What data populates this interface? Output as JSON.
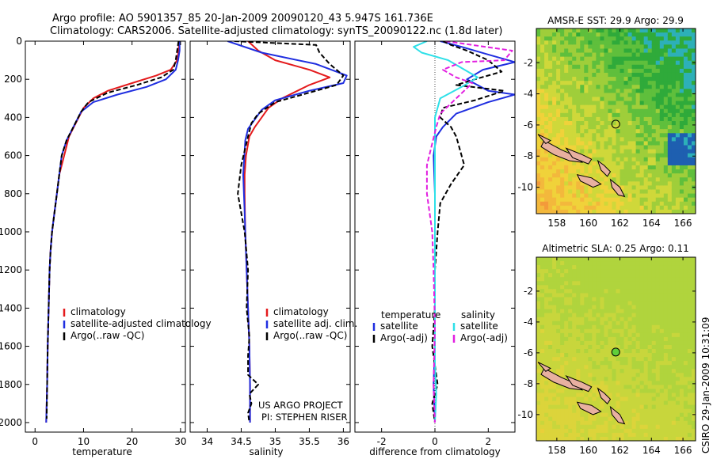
{
  "header": {
    "line1": "Argo profile: AO 5901357_85 20-Jan-2009 20090120_43 5.947S 161.736E",
    "line2": "Climatology: CARS2006. Satellite-adjusted climatology: synTS_20090122.nc (1.8d later)"
  },
  "side_label": "CSIRO 29-Jan-2009 10:31:09",
  "colors": {
    "climatology": "#e41a1c",
    "satellite": "#1f2ee0",
    "argo": "#000000",
    "sal_satellite": "#2ee0e8",
    "sal_argo": "#e21fe0"
  },
  "chart_data": [
    {
      "type": "line",
      "xlabel": "temperature",
      "xlim": [
        -2,
        31
      ],
      "ylim": [
        0,
        2050
      ],
      "xticks": [
        "0",
        "10",
        "20",
        "30"
      ],
      "xtick_values": [
        0,
        10,
        20,
        30
      ],
      "yticks": [
        "0",
        "200",
        "400",
        "600",
        "800",
        "1000",
        "1200",
        "1400",
        "1600",
        "1800",
        "2000"
      ],
      "ytick_values": [
        0,
        200,
        400,
        600,
        800,
        1000,
        1200,
        1400,
        1600,
        1800,
        2000
      ],
      "legend": [
        {
          "label": "climatology",
          "color": "#e41a1c"
        },
        {
          "label": "satellite-adjusted climatology",
          "color": "#1f2ee0"
        },
        {
          "label": "Argo(..raw -QC)",
          "color": "#000000"
        }
      ],
      "series": [
        {
          "name": "climatology",
          "color": "#e41a1c",
          "dash": "",
          "x": [
            29.7,
            29.6,
            29.3,
            28,
            25,
            20,
            15,
            12,
            10,
            9,
            8,
            7,
            6,
            5,
            4.5,
            4,
            3.5,
            3.2,
            3,
            2.8,
            2.6,
            2.5,
            2.4,
            2.3
          ],
          "y": [
            0,
            50,
            100,
            150,
            180,
            220,
            260,
            300,
            350,
            400,
            450,
            500,
            600,
            700,
            800,
            900,
            1000,
            1100,
            1200,
            1400,
            1600,
            1800,
            1900,
            2000
          ]
        },
        {
          "name": "satellite-adjusted climatology",
          "color": "#1f2ee0",
          "dash": "",
          "x": [
            29.8,
            29.8,
            29.5,
            29,
            27,
            23,
            17,
            12,
            9.5,
            8.5,
            7.5,
            6.5,
            5.5,
            5,
            4.5,
            4,
            3.5,
            3.2,
            3,
            2.8,
            2.6,
            2.5,
            2.4,
            2.3
          ],
          "y": [
            0,
            50,
            100,
            150,
            200,
            240,
            280,
            320,
            370,
            420,
            470,
            520,
            600,
            700,
            800,
            900,
            1000,
            1100,
            1200,
            1400,
            1600,
            1800,
            1900,
            2000
          ]
        },
        {
          "name": "Argo(..raw -QC)",
          "color": "#000000",
          "dash": "6,3",
          "x": [
            29.6,
            29.3,
            29,
            28.5,
            26,
            21,
            15,
            11,
            9.5,
            8.5,
            7.5,
            6.5,
            5.5,
            5,
            4.5,
            4,
            3.5,
            3.2,
            3,
            2.8,
            2.6,
            2.5,
            2.4
          ],
          "y": [
            0,
            50,
            100,
            150,
            190,
            230,
            270,
            320,
            370,
            420,
            470,
            520,
            600,
            700,
            800,
            900,
            1000,
            1100,
            1200,
            1400,
            1600,
            1800,
            1980
          ]
        }
      ]
    },
    {
      "type": "line",
      "xlabel": "salinity",
      "xlim": [
        33.75,
        36.1
      ],
      "ylim": [
        0,
        2050
      ],
      "xticks": [
        "34",
        "34.5",
        "35",
        "35.5",
        "36"
      ],
      "xtick_values": [
        34,
        34.5,
        35,
        35.5,
        36
      ],
      "legend": [
        {
          "label": "climatology",
          "color": "#e41a1c"
        },
        {
          "label": "satellite adj. clim.",
          "color": "#1f2ee0"
        },
        {
          "label": "Argo(..raw -QC)",
          "color": "#000000"
        }
      ],
      "annotation": [
        "US ARGO PROJECT",
        "PI: STEPHEN RISER"
      ],
      "series": [
        {
          "name": "climatology",
          "color": "#e41a1c",
          "dash": "",
          "x": [
            34.6,
            34.75,
            35,
            35.5,
            35.8,
            35.5,
            35.1,
            34.9,
            34.8,
            34.7,
            34.62,
            34.57,
            34.55,
            34.55,
            34.56,
            34.58,
            34.6,
            34.62,
            34.63,
            34.63,
            34.63
          ],
          "y": [
            0,
            50,
            100,
            150,
            190,
            230,
            300,
            350,
            400,
            450,
            500,
            600,
            700,
            800,
            1000,
            1200,
            1400,
            1600,
            1800,
            1900,
            2000
          ]
        },
        {
          "name": "satellite adj. clim.",
          "color": "#1f2ee0",
          "dash": "",
          "x": [
            34.3,
            34.8,
            35.6,
            36.05,
            36.0,
            35.5,
            35.0,
            34.8,
            34.7,
            34.6,
            34.56,
            34.53,
            34.55,
            34.56,
            34.58,
            34.6,
            34.62,
            34.63,
            34.63,
            34.63
          ],
          "y": [
            0,
            60,
            120,
            180,
            220,
            260,
            310,
            360,
            410,
            460,
            520,
            700,
            900,
            1000,
            1200,
            1400,
            1600,
            1800,
            1900,
            2000
          ]
        },
        {
          "name": "Argo(..raw -QC)",
          "color": "#000000",
          "dash": "6,3",
          "x": [
            34.4,
            35.6,
            35.65,
            35.8,
            36.0,
            35.9,
            35.5,
            35.0,
            34.75,
            34.65,
            34.6,
            34.5,
            34.45,
            34.55,
            34.6,
            34.58,
            34.62,
            34.6,
            34.6,
            34.75,
            34.62,
            34.65,
            34.6,
            34.62
          ],
          "y": [
            0,
            20,
            60,
            120,
            180,
            230,
            270,
            320,
            380,
            430,
            500,
            650,
            800,
            1000,
            1200,
            1400,
            1550,
            1650,
            1750,
            1800,
            1850,
            1900,
            1950,
            2000
          ]
        }
      ]
    },
    {
      "type": "line",
      "xlabel": "difference from climatology",
      "xlim": [
        -3,
        3
      ],
      "ylim": [
        0,
        2050
      ],
      "xticks": [
        "-2",
        "0",
        "2"
      ],
      "xtick_values": [
        -2,
        0,
        2
      ],
      "legend_headers": [
        "temperature",
        "salinity"
      ],
      "legend": [
        {
          "label": "satellite",
          "color": "#1f2ee0"
        },
        {
          "label": "Argo(-adj)",
          "color": "#000000"
        },
        {
          "label": "satellite",
          "color": "#2ee0e8"
        },
        {
          "label": "Argo(-adj)",
          "color": "#e21fe0"
        }
      ],
      "series": [
        {
          "name": "temperature satellite",
          "color": "#1f2ee0",
          "dash": "",
          "x": [
            0.2,
            1.0,
            2.0,
            3.0,
            1.8,
            1.2,
            2.0,
            3.0,
            2.0,
            0.8,
            0.3,
            0.05,
            -0.05,
            0,
            0,
            0,
            0,
            0,
            -0.05,
            0
          ],
          "y": [
            0,
            30,
            70,
            110,
            150,
            200,
            260,
            280,
            320,
            380,
            450,
            500,
            600,
            800,
            1000,
            1200,
            1400,
            1600,
            1800,
            2000
          ]
        },
        {
          "name": "temperature Argo(-adj)",
          "color": "#000000",
          "dash": "6,3",
          "x": [
            0.3,
            0.6,
            1.2,
            2.0,
            2.5,
            1.5,
            0.8,
            2.6,
            1.5,
            0.3,
            0.2,
            0.6,
            0.8,
            1.1,
            0.6,
            0.2,
            0.1,
            0,
            0,
            -0.1,
            0.1,
            -0.1,
            0
          ],
          "y": [
            0,
            20,
            50,
            100,
            160,
            200,
            230,
            260,
            310,
            350,
            400,
            450,
            500,
            650,
            750,
            850,
            1000,
            1200,
            1400,
            1600,
            1800,
            1900,
            2000
          ]
        },
        {
          "name": "salinity satellite",
          "color": "#2ee0e8",
          "dash": "",
          "x": [
            -0.3,
            -0.8,
            -0.5,
            0.5,
            1.6,
            1.0,
            0.2,
            0,
            0,
            0,
            0,
            0,
            0,
            0.05,
            0
          ],
          "y": [
            0,
            30,
            60,
            100,
            190,
            240,
            300,
            400,
            500,
            800,
            1000,
            1400,
            1700,
            1850,
            2000
          ]
        },
        {
          "name": "salinity Argo(-adj)",
          "color": "#e21fe0",
          "dash": "6,3",
          "x": [
            0.4,
            1.4,
            2.9,
            2.6,
            1.0,
            0.3,
            0.8,
            1.4,
            0.8,
            0.2,
            0.05,
            -0.3,
            -0.3,
            -0.1,
            -0.05,
            0,
            -0.05,
            0
          ],
          "y": [
            0,
            20,
            50,
            100,
            110,
            150,
            190,
            220,
            300,
            380,
            450,
            650,
            800,
            1000,
            1200,
            1500,
            1800,
            2000
          ]
        }
      ]
    },
    {
      "type": "heatmap",
      "title": "AMSR-E SST: 29.9 Argo: 29.9",
      "xlim": [
        156.7,
        166.8
      ],
      "ylim": [
        -11.7,
        0.2
      ],
      "xticks": [
        "158",
        "160",
        "162",
        "164",
        "166"
      ],
      "xtick_values": [
        158,
        160,
        162,
        164,
        166
      ],
      "yticks": [
        "-2",
        "-4",
        "-6",
        "-8",
        "-10"
      ],
      "ytick_values": [
        -2,
        -4,
        -6,
        -8,
        -10
      ],
      "marker": {
        "lon": 161.736,
        "lat": -5.947,
        "fill": "none"
      },
      "palette": [
        "#2faa3a",
        "#5fbf3c",
        "#9fce3a",
        "#cfd83a",
        "#f0d23a",
        "#f3b83c",
        "#f39a3a"
      ]
    },
    {
      "type": "heatmap",
      "title": "Altimetric SLA: 0.25 Argo: 0.11",
      "xlim": [
        156.7,
        166.8
      ],
      "ylim": [
        -11.7,
        0.2
      ],
      "xticks": [
        "158",
        "160",
        "162",
        "164",
        "166"
      ],
      "xtick_values": [
        158,
        160,
        162,
        164,
        166
      ],
      "yticks": [
        "-2",
        "-4",
        "-6",
        "-8",
        "-10"
      ],
      "ytick_values": [
        -2,
        -4,
        -6,
        -8,
        -10
      ],
      "marker": {
        "lon": 161.736,
        "lat": -5.947,
        "fill": "#5fce3a"
      },
      "palette": [
        "#f0c83a",
        "#e9cf3a",
        "#dcd43b",
        "#c8d63c",
        "#b0d43d"
      ]
    }
  ]
}
